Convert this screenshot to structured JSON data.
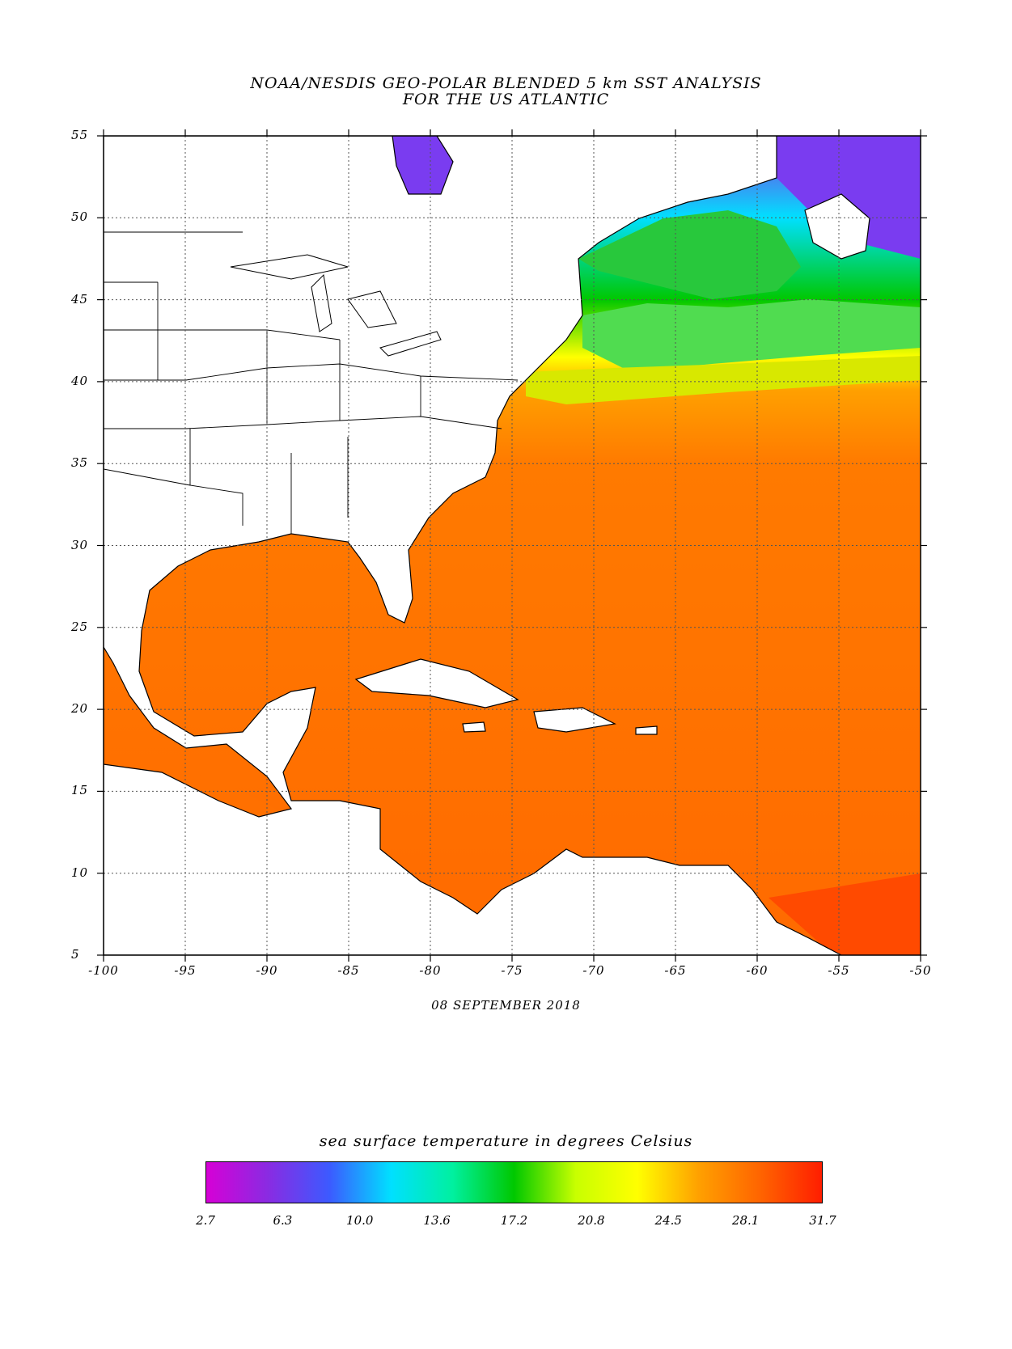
{
  "title": {
    "line1": "NOAA/NESDIS GEO-POLAR BLENDED 5 km SST ANALYSIS",
    "line2": "FOR THE US ATLANTIC"
  },
  "date": "08 SEPTEMBER 2018",
  "map": {
    "lon_range": [
      -100,
      -50
    ],
    "lat_range": [
      5,
      55
    ],
    "lon_ticks": [
      "-100",
      "-95",
      "-90",
      "-85",
      "-80",
      "-75",
      "-70",
      "-65",
      "-60",
      "-55",
      "-50"
    ],
    "lat_ticks": [
      "55",
      "50",
      "45",
      "40",
      "35",
      "30",
      "25",
      "20",
      "15",
      "10",
      "5"
    ],
    "grid": "dotted",
    "land_color": "#ffffff",
    "coastline_color": "#000000"
  },
  "colorbar": {
    "title": "sea surface temperature in degrees Celsius",
    "labels": [
      "2.7",
      "6.3",
      "10.0",
      "13.6",
      "17.2",
      "20.8",
      "24.5",
      "28.1",
      "31.7"
    ],
    "colors": [
      "#d600d6",
      "#8a2be2",
      "#3c5aff",
      "#00e0ff",
      "#00f0a0",
      "#00c800",
      "#c8ff00",
      "#ffff00",
      "#ffa000",
      "#ff6400",
      "#ff1e00"
    ]
  }
}
